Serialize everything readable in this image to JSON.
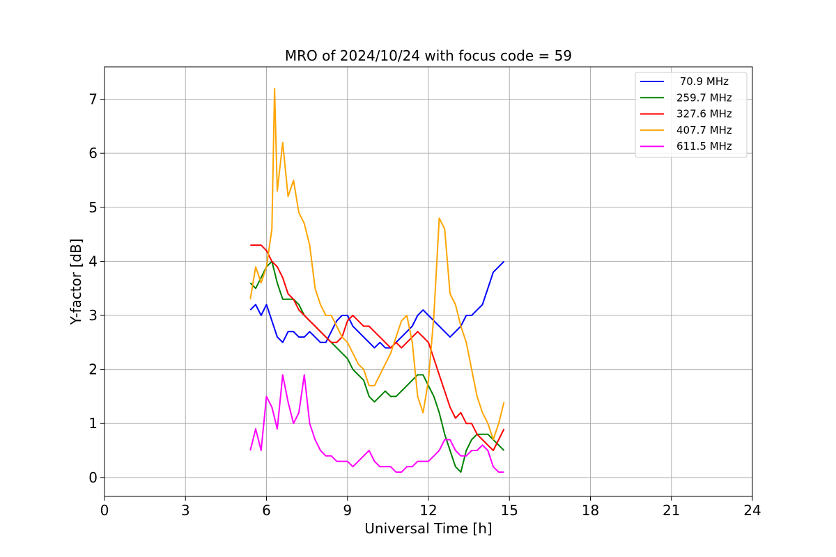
{
  "chart_data": {
    "type": "line",
    "title": "MRO of 2024/10/24 with focus code = 59",
    "xlabel": "Universal Time [h]",
    "ylabel": "Y-factor [dB]",
    "xlim": [
      0,
      24
    ],
    "ylim": [
      -0.35,
      7.6
    ],
    "xticks": [
      0,
      3,
      6,
      9,
      12,
      15,
      18,
      21,
      24
    ],
    "yticks": [
      0,
      1,
      2,
      3,
      4,
      5,
      6,
      7
    ],
    "grid": true,
    "legend_position": "top-right",
    "series": [
      {
        "name": " 70.9 MHz",
        "color": "#0000ff",
        "points": [
          [
            5.4,
            3.1
          ],
          [
            5.6,
            3.2
          ],
          [
            5.8,
            3.0
          ],
          [
            6.0,
            3.2
          ],
          [
            6.2,
            2.9
          ],
          [
            6.4,
            2.6
          ],
          [
            6.6,
            2.5
          ],
          [
            6.8,
            2.7
          ],
          [
            7.0,
            2.7
          ],
          [
            7.2,
            2.6
          ],
          [
            7.4,
            2.6
          ],
          [
            7.6,
            2.7
          ],
          [
            7.8,
            2.6
          ],
          [
            8.0,
            2.5
          ],
          [
            8.2,
            2.5
          ],
          [
            8.4,
            2.7
          ],
          [
            8.6,
            2.9
          ],
          [
            8.8,
            3.0
          ],
          [
            9.0,
            3.0
          ],
          [
            9.2,
            2.8
          ],
          [
            9.4,
            2.7
          ],
          [
            9.6,
            2.6
          ],
          [
            9.8,
            2.5
          ],
          [
            10.0,
            2.4
          ],
          [
            10.2,
            2.5
          ],
          [
            10.4,
            2.4
          ],
          [
            10.6,
            2.4
          ],
          [
            10.8,
            2.5
          ],
          [
            11.0,
            2.6
          ],
          [
            11.2,
            2.7
          ],
          [
            11.4,
            2.8
          ],
          [
            11.6,
            3.0
          ],
          [
            11.8,
            3.1
          ],
          [
            12.0,
            3.0
          ],
          [
            12.2,
            2.9
          ],
          [
            12.4,
            2.8
          ],
          [
            12.6,
            2.7
          ],
          [
            12.8,
            2.6
          ],
          [
            13.0,
            2.7
          ],
          [
            13.2,
            2.8
          ],
          [
            13.4,
            3.0
          ],
          [
            13.6,
            3.0
          ],
          [
            13.8,
            3.1
          ],
          [
            14.0,
            3.2
          ],
          [
            14.2,
            3.5
          ],
          [
            14.4,
            3.8
          ],
          [
            14.6,
            3.9
          ],
          [
            14.8,
            4.0
          ]
        ]
      },
      {
        "name": "259.7 MHz",
        "color": "#008000",
        "points": [
          [
            5.4,
            3.6
          ],
          [
            5.6,
            3.5
          ],
          [
            5.8,
            3.7
          ],
          [
            6.0,
            3.9
          ],
          [
            6.2,
            4.0
          ],
          [
            6.4,
            3.6
          ],
          [
            6.6,
            3.3
          ],
          [
            6.8,
            3.3
          ],
          [
            7.0,
            3.3
          ],
          [
            7.2,
            3.2
          ],
          [
            7.4,
            3.0
          ],
          [
            7.6,
            2.9
          ],
          [
            7.8,
            2.8
          ],
          [
            8.0,
            2.7
          ],
          [
            8.2,
            2.6
          ],
          [
            8.4,
            2.5
          ],
          [
            8.6,
            2.4
          ],
          [
            8.8,
            2.3
          ],
          [
            9.0,
            2.2
          ],
          [
            9.2,
            2.0
          ],
          [
            9.4,
            1.9
          ],
          [
            9.6,
            1.8
          ],
          [
            9.8,
            1.5
          ],
          [
            10.0,
            1.4
          ],
          [
            10.2,
            1.5
          ],
          [
            10.4,
            1.6
          ],
          [
            10.6,
            1.5
          ],
          [
            10.8,
            1.5
          ],
          [
            11.0,
            1.6
          ],
          [
            11.2,
            1.7
          ],
          [
            11.4,
            1.8
          ],
          [
            11.6,
            1.9
          ],
          [
            11.8,
            1.9
          ],
          [
            12.0,
            1.7
          ],
          [
            12.2,
            1.5
          ],
          [
            12.4,
            1.2
          ],
          [
            12.6,
            0.8
          ],
          [
            12.8,
            0.5
          ],
          [
            13.0,
            0.2
          ],
          [
            13.2,
            0.1
          ],
          [
            13.4,
            0.5
          ],
          [
            13.6,
            0.7
          ],
          [
            13.8,
            0.8
          ],
          [
            14.0,
            0.8
          ],
          [
            14.2,
            0.8
          ],
          [
            14.4,
            0.7
          ],
          [
            14.6,
            0.6
          ],
          [
            14.8,
            0.5
          ]
        ]
      },
      {
        "name": "327.6 MHz",
        "color": "#ff0000",
        "points": [
          [
            5.4,
            4.3
          ],
          [
            5.6,
            4.3
          ],
          [
            5.8,
            4.3
          ],
          [
            6.0,
            4.2
          ],
          [
            6.2,
            4.0
          ],
          [
            6.4,
            3.9
          ],
          [
            6.6,
            3.7
          ],
          [
            6.8,
            3.4
          ],
          [
            7.0,
            3.3
          ],
          [
            7.2,
            3.1
          ],
          [
            7.4,
            3.0
          ],
          [
            7.6,
            2.9
          ],
          [
            7.8,
            2.8
          ],
          [
            8.0,
            2.7
          ],
          [
            8.2,
            2.6
          ],
          [
            8.4,
            2.5
          ],
          [
            8.6,
            2.5
          ],
          [
            8.8,
            2.6
          ],
          [
            9.0,
            2.9
          ],
          [
            9.2,
            3.0
          ],
          [
            9.4,
            2.9
          ],
          [
            9.6,
            2.8
          ],
          [
            9.8,
            2.8
          ],
          [
            10.0,
            2.7
          ],
          [
            10.2,
            2.6
          ],
          [
            10.4,
            2.5
          ],
          [
            10.6,
            2.4
          ],
          [
            10.8,
            2.5
          ],
          [
            11.0,
            2.4
          ],
          [
            11.2,
            2.5
          ],
          [
            11.4,
            2.6
          ],
          [
            11.6,
            2.7
          ],
          [
            11.8,
            2.6
          ],
          [
            12.0,
            2.5
          ],
          [
            12.2,
            2.2
          ],
          [
            12.4,
            1.9
          ],
          [
            12.6,
            1.6
          ],
          [
            12.8,
            1.3
          ],
          [
            13.0,
            1.1
          ],
          [
            13.2,
            1.2
          ],
          [
            13.4,
            1.0
          ],
          [
            13.6,
            1.0
          ],
          [
            13.8,
            0.8
          ],
          [
            14.0,
            0.7
          ],
          [
            14.2,
            0.6
          ],
          [
            14.4,
            0.5
          ],
          [
            14.6,
            0.7
          ],
          [
            14.8,
            0.9
          ]
        ]
      },
      {
        "name": "407.7 MHz",
        "color": "#ffa500",
        "points": [
          [
            5.4,
            3.3
          ],
          [
            5.6,
            3.9
          ],
          [
            5.8,
            3.6
          ],
          [
            6.0,
            3.9
          ],
          [
            6.2,
            4.6
          ],
          [
            6.3,
            7.2
          ],
          [
            6.4,
            5.3
          ],
          [
            6.6,
            6.2
          ],
          [
            6.8,
            5.2
          ],
          [
            7.0,
            5.5
          ],
          [
            7.2,
            4.9
          ],
          [
            7.4,
            4.7
          ],
          [
            7.6,
            4.3
          ],
          [
            7.8,
            3.5
          ],
          [
            8.0,
            3.2
          ],
          [
            8.2,
            3.0
          ],
          [
            8.4,
            3.0
          ],
          [
            8.6,
            2.8
          ],
          [
            8.8,
            2.6
          ],
          [
            9.0,
            2.5
          ],
          [
            9.2,
            2.3
          ],
          [
            9.4,
            2.1
          ],
          [
            9.6,
            2.0
          ],
          [
            9.8,
            1.7
          ],
          [
            10.0,
            1.7
          ],
          [
            10.2,
            1.9
          ],
          [
            10.4,
            2.1
          ],
          [
            10.6,
            2.3
          ],
          [
            10.8,
            2.6
          ],
          [
            11.0,
            2.9
          ],
          [
            11.2,
            3.0
          ],
          [
            11.4,
            2.5
          ],
          [
            11.6,
            1.5
          ],
          [
            11.8,
            1.2
          ],
          [
            12.0,
            1.8
          ],
          [
            12.2,
            3.0
          ],
          [
            12.4,
            4.8
          ],
          [
            12.6,
            4.6
          ],
          [
            12.8,
            3.4
          ],
          [
            13.0,
            3.2
          ],
          [
            13.2,
            2.8
          ],
          [
            13.4,
            2.5
          ],
          [
            13.6,
            2.0
          ],
          [
            13.8,
            1.5
          ],
          [
            14.0,
            1.2
          ],
          [
            14.2,
            1.0
          ],
          [
            14.4,
            0.7
          ],
          [
            14.6,
            1.0
          ],
          [
            14.8,
            1.4
          ]
        ]
      },
      {
        "name": "611.5 MHz",
        "color": "#ff00ff",
        "points": [
          [
            5.4,
            0.5
          ],
          [
            5.6,
            0.9
          ],
          [
            5.8,
            0.5
          ],
          [
            6.0,
            1.5
          ],
          [
            6.2,
            1.3
          ],
          [
            6.4,
            0.9
          ],
          [
            6.6,
            1.9
          ],
          [
            6.8,
            1.4
          ],
          [
            7.0,
            1.0
          ],
          [
            7.2,
            1.2
          ],
          [
            7.4,
            1.9
          ],
          [
            7.6,
            1.0
          ],
          [
            7.8,
            0.7
          ],
          [
            8.0,
            0.5
          ],
          [
            8.2,
            0.4
          ],
          [
            8.4,
            0.4
          ],
          [
            8.6,
            0.3
          ],
          [
            8.8,
            0.3
          ],
          [
            9.0,
            0.3
          ],
          [
            9.2,
            0.2
          ],
          [
            9.4,
            0.3
          ],
          [
            9.6,
            0.4
          ],
          [
            9.8,
            0.5
          ],
          [
            10.0,
            0.3
          ],
          [
            10.2,
            0.2
          ],
          [
            10.4,
            0.2
          ],
          [
            10.6,
            0.2
          ],
          [
            10.8,
            0.1
          ],
          [
            11.0,
            0.1
          ],
          [
            11.2,
            0.2
          ],
          [
            11.4,
            0.2
          ],
          [
            11.6,
            0.3
          ],
          [
            11.8,
            0.3
          ],
          [
            12.0,
            0.3
          ],
          [
            12.2,
            0.4
          ],
          [
            12.4,
            0.5
          ],
          [
            12.6,
            0.7
          ],
          [
            12.8,
            0.7
          ],
          [
            13.0,
            0.5
          ],
          [
            13.2,
            0.4
          ],
          [
            13.4,
            0.4
          ],
          [
            13.6,
            0.5
          ],
          [
            13.8,
            0.5
          ],
          [
            14.0,
            0.6
          ],
          [
            14.2,
            0.5
          ],
          [
            14.4,
            0.2
          ],
          [
            14.6,
            0.1
          ],
          [
            14.8,
            0.1
          ]
        ]
      }
    ]
  }
}
